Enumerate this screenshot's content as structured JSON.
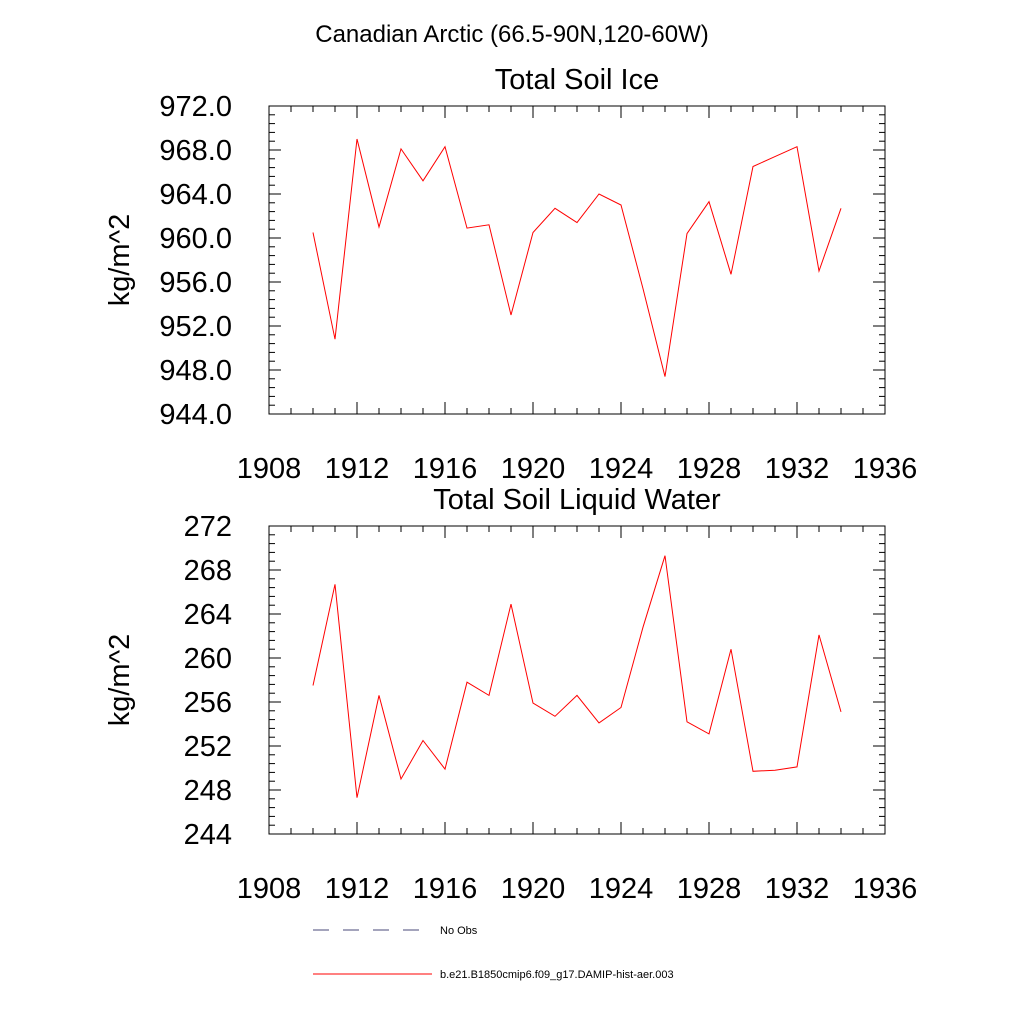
{
  "figure": {
    "suptitle": "Canadian Arctic (66.5-90N,120-60W)"
  },
  "legend": {
    "entries": [
      {
        "label": "No Obs",
        "color": "#4a4a7a",
        "style": "dashed"
      },
      {
        "label": "b.e21.B1850cmip6.f09_g17.DAMIP-hist-aer.003",
        "color": "#ff0000",
        "style": "solid"
      }
    ]
  },
  "chart_data": [
    {
      "type": "line",
      "title": "Total Soil Ice",
      "xlabel": "",
      "ylabel": "kg/m^2",
      "xlim": [
        1908,
        1936
      ],
      "ylim": [
        944,
        972
      ],
      "x_ticks": [
        1908,
        1912,
        1916,
        1920,
        1924,
        1928,
        1932,
        1936
      ],
      "x_tick_labels": [
        "1908",
        "1912",
        "1916",
        "1920",
        "1924",
        "1928",
        "1932",
        "1936"
      ],
      "y_ticks": [
        944,
        948,
        952,
        956,
        960,
        964,
        968,
        972
      ],
      "y_tick_labels": [
        "944.0",
        "948.0",
        "952.0",
        "956.0",
        "960.0",
        "964.0",
        "968.0",
        "972.0"
      ],
      "grid": false,
      "series": [
        {
          "name": "b.e21.B1850cmip6.f09_g17.DAMIP-hist-aer.003",
          "color": "#ff0000",
          "x": [
            1910,
            1911,
            1912,
            1913,
            1914,
            1915,
            1916,
            1917,
            1918,
            1919,
            1920,
            1921,
            1922,
            1923,
            1924,
            1925,
            1926,
            1927,
            1928,
            1929,
            1930,
            1931,
            1932,
            1933,
            1934
          ],
          "y": [
            960.5,
            950.8,
            969.0,
            961.0,
            968.1,
            965.2,
            968.3,
            960.9,
            961.2,
            953.0,
            960.5,
            962.7,
            961.4,
            964.0,
            963.0,
            955.4,
            947.4,
            960.4,
            963.3,
            956.7,
            966.5,
            967.4,
            968.3,
            957.0,
            962.7
          ]
        }
      ]
    },
    {
      "type": "line",
      "title": "Total Soil Liquid Water",
      "xlabel": "",
      "ylabel": "kg/m^2",
      "xlim": [
        1908,
        1936
      ],
      "ylim": [
        244,
        272
      ],
      "x_ticks": [
        1908,
        1912,
        1916,
        1920,
        1924,
        1928,
        1932,
        1936
      ],
      "x_tick_labels": [
        "1908",
        "1912",
        "1916",
        "1920",
        "1924",
        "1928",
        "1932",
        "1936"
      ],
      "y_ticks": [
        244,
        248,
        252,
        256,
        260,
        264,
        268,
        272
      ],
      "y_tick_labels": [
        "244",
        "248",
        "252",
        "256",
        "260",
        "264",
        "268",
        "272"
      ],
      "grid": false,
      "series": [
        {
          "name": "b.e21.B1850cmip6.f09_g17.DAMIP-hist-aer.003",
          "color": "#ff0000",
          "x": [
            1910,
            1911,
            1912,
            1913,
            1914,
            1915,
            1916,
            1917,
            1918,
            1919,
            1920,
            1921,
            1922,
            1923,
            1924,
            1925,
            1926,
            1927,
            1928,
            1929,
            1930,
            1931,
            1932,
            1933,
            1934
          ],
          "y": [
            257.5,
            266.7,
            247.3,
            256.6,
            249.0,
            252.5,
            249.9,
            257.8,
            256.6,
            264.9,
            255.9,
            254.7,
            256.6,
            254.1,
            255.5,
            262.8,
            269.3,
            254.2,
            253.1,
            260.8,
            249.7,
            249.8,
            250.1,
            262.1,
            255.1
          ]
        }
      ]
    }
  ]
}
